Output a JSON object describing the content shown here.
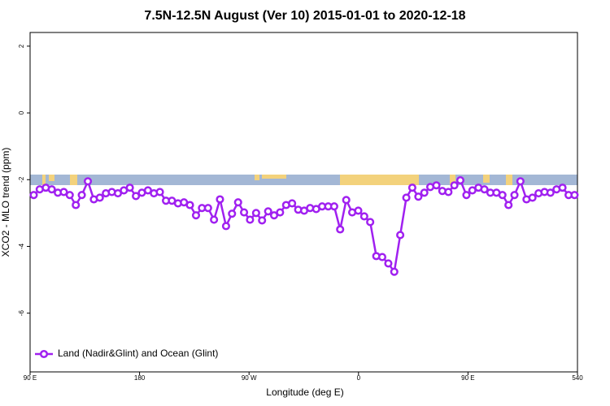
{
  "chart_data": {
    "type": "line",
    "title": "7.5N-12.5N August (Ver 10)   2015-01-01 to 2020-12-18",
    "x_label": "Longitude (deg E)",
    "y_label": "XCO2 - MLO trend (ppm)",
    "xlim": [
      90,
      540
    ],
    "ylim": [
      -7.76,
      2.41
    ],
    "xticks": [
      {
        "value": 90,
        "label": "90 E"
      },
      180,
      {
        "value": 270,
        "label": "90 W"
      },
      {
        "value": 360,
        "label": "0"
      },
      {
        "value": 450,
        "label": "90 E"
      },
      540
    ],
    "yticks": [
      -6,
      -4,
      -2,
      0,
      2
    ],
    "legend": "bottom-left",
    "series": [
      {
        "name": "Land (Nadir&Glint) and Ocean (Glint)",
        "color": "#a020f0",
        "x": [
          93.0,
          97.9,
          102.9,
          107.8,
          112.8,
          117.7,
          122.6,
          127.6,
          132.5,
          137.5,
          142.4,
          147.3,
          152.3,
          157.2,
          162.2,
          167.1,
          172.0,
          177.0,
          181.9,
          186.9,
          191.8,
          196.7,
          201.7,
          206.6,
          211.6,
          216.5,
          221.4,
          226.4,
          231.3,
          236.3,
          241.2,
          246.1,
          251.1,
          256.0,
          261.0,
          265.9,
          270.8,
          275.8,
          280.7,
          285.7,
          290.6,
          295.5,
          300.5,
          305.4,
          310.4,
          315.3,
          320.2,
          325.2,
          330.1,
          335.1,
          340.0,
          344.9,
          349.9,
          354.8,
          359.8,
          364.7,
          369.6,
          374.6,
          379.5,
          384.5,
          389.4,
          394.3,
          399.3,
          404.2,
          409.2,
          414.1,
          419.0,
          424.0,
          428.9,
          433.9,
          438.8,
          443.7,
          448.7,
          453.6,
          458.6,
          463.5,
          468.4,
          473.4,
          478.3,
          483.3,
          488.2,
          493.1,
          498.1,
          503.0,
          508.0,
          512.9,
          517.8,
          522.8,
          527.7,
          532.7,
          537.6
        ],
        "values": [
          -2.46,
          -2.29,
          -2.24,
          -2.29,
          -2.39,
          -2.37,
          -2.46,
          -2.76,
          -2.46,
          -2.05,
          -2.59,
          -2.54,
          -2.41,
          -2.37,
          -2.41,
          -2.32,
          -2.24,
          -2.49,
          -2.39,
          -2.32,
          -2.41,
          -2.37,
          -2.63,
          -2.63,
          -2.71,
          -2.68,
          -2.76,
          -3.07,
          -2.85,
          -2.85,
          -3.2,
          -2.59,
          -3.39,
          -3.02,
          -2.68,
          -2.98,
          -3.2,
          -3.0,
          -3.22,
          -2.95,
          -3.07,
          -2.98,
          -2.76,
          -2.71,
          -2.9,
          -2.93,
          -2.85,
          -2.88,
          -2.8,
          -2.8,
          -2.8,
          -3.49,
          -2.61,
          -2.98,
          -2.93,
          -3.1,
          -3.27,
          -4.29,
          -4.32,
          -4.51,
          -4.76,
          -3.66,
          -2.54,
          -2.24,
          -2.51,
          -2.39,
          -2.22,
          -2.17,
          -2.34,
          -2.37,
          -2.17,
          -2.02,
          -2.46,
          -2.32,
          -2.24,
          -2.29,
          -2.39,
          -2.39,
          -2.46,
          -2.76,
          -2.46,
          -2.05,
          -2.59,
          -2.54,
          -2.41,
          -2.37,
          -2.39,
          -2.29,
          -2.24,
          -2.46,
          -2.46
        ]
      }
    ]
  }
}
